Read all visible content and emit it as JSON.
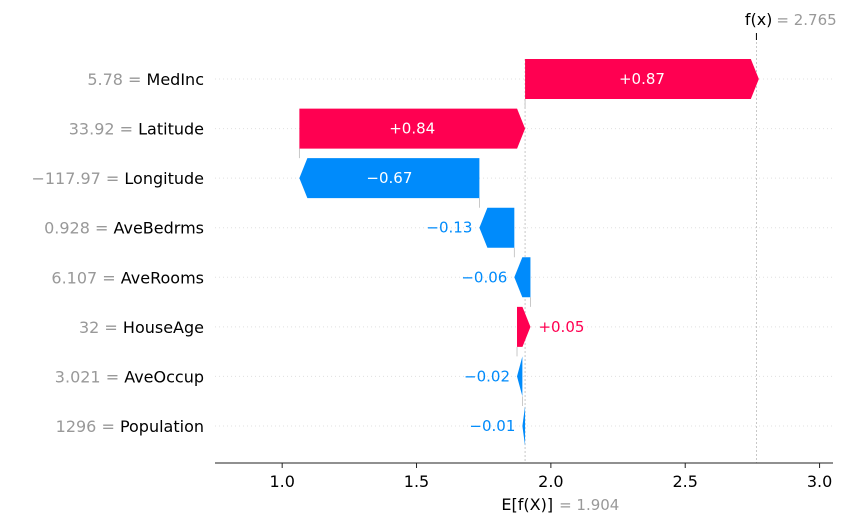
{
  "chart_data": {
    "type": "waterfall",
    "base_value": 1.904,
    "base_label": "E[f(X)]",
    "base_value_text": "= 1.904",
    "output_value": 2.765,
    "output_label": "f(x)",
    "output_value_text": "= 2.765",
    "xlim": [
      0.75,
      3.05
    ],
    "xticks": [
      1.0,
      1.5,
      2.0,
      2.5,
      3.0
    ],
    "xtick_labels": [
      "1.0",
      "1.5",
      "2.0",
      "2.5",
      "3.0"
    ],
    "colors": {
      "positive": "#ff0051",
      "negative": "#008bfb"
    },
    "features": [
      {
        "value_text": "5.78 =",
        "name": "MedInc",
        "contribution": 0.87,
        "label": "+0.87"
      },
      {
        "value_text": "33.92 =",
        "name": "Latitude",
        "contribution": 0.84,
        "label": "+0.84"
      },
      {
        "value_text": "−117.97 =",
        "name": "Longitude",
        "contribution": -0.67,
        "label": "−0.67"
      },
      {
        "value_text": "0.928 =",
        "name": "AveBedrms",
        "contribution": -0.13,
        "label": "−0.13"
      },
      {
        "value_text": "6.107 =",
        "name": "AveRooms",
        "contribution": -0.06,
        "label": "−0.06"
      },
      {
        "value_text": "32 =",
        "name": "HouseAge",
        "contribution": 0.05,
        "label": "+0.05"
      },
      {
        "value_text": "3.021 =",
        "name": "AveOccup",
        "contribution": -0.02,
        "label": "−0.02"
      },
      {
        "value_text": "1296 =",
        "name": "Population",
        "contribution": -0.01,
        "label": "−0.01"
      }
    ]
  }
}
